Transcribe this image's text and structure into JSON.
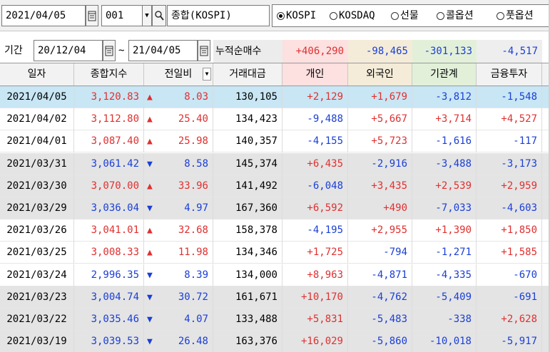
{
  "toolbar": {
    "date": "2021/04/05",
    "code": "001",
    "name": "종합(KOSPI)",
    "market_options": [
      {
        "label": "KOSPI",
        "selected": true
      },
      {
        "label": "KOSDAQ",
        "selected": false
      },
      {
        "label": "선물",
        "selected": false
      },
      {
        "label": "콜옵션",
        "selected": false
      },
      {
        "label": "풋옵션",
        "selected": false
      }
    ]
  },
  "period": {
    "label": "기간",
    "from": "20/12/04",
    "sep": "~",
    "to": "21/04/05",
    "cumulative_label": "누적순매수",
    "totals": [
      "+406,290",
      "-98,465",
      "-301,133",
      "-4,517"
    ]
  },
  "columns": [
    "일자",
    "종합지수",
    "전일비",
    "거래대금",
    "개인",
    "외국인",
    "기관계",
    "금융투자"
  ],
  "colors": {
    "up": "#e03030",
    "down": "#1a3fd6",
    "selected_row": "#c8e6f4",
    "gray_row": "#e4e4e4",
    "hdr_individual": "#fde0e0",
    "hdr_foreign": "#f4ecd8",
    "hdr_inst": "#e2f0d9",
    "hdr_fin": "#eeeeee"
  },
  "rows": [
    {
      "date": "2021/04/05",
      "index": "3,120.83",
      "dir": "up",
      "change": "8.03",
      "amount": "130,105",
      "individual": "+2,129",
      "foreign": "+1,679",
      "institution": "-3,812",
      "financial": "-1,548",
      "bg": "selected"
    },
    {
      "date": "2021/04/02",
      "index": "3,112.80",
      "dir": "up",
      "change": "25.40",
      "amount": "134,423",
      "individual": "-9,488",
      "foreign": "+5,667",
      "institution": "+3,714",
      "financial": "+4,527",
      "bg": "white"
    },
    {
      "date": "2021/04/01",
      "index": "3,087.40",
      "dir": "up",
      "change": "25.98",
      "amount": "140,357",
      "individual": "-4,155",
      "foreign": "+5,723",
      "institution": "-1,616",
      "financial": "-117",
      "bg": "white"
    },
    {
      "date": "2021/03/31",
      "index": "3,061.42",
      "dir": "down",
      "change": "8.58",
      "amount": "145,374",
      "individual": "+6,435",
      "foreign": "-2,916",
      "institution": "-3,488",
      "financial": "-3,173",
      "bg": "gray"
    },
    {
      "date": "2021/03/30",
      "index": "3,070.00",
      "dir": "up",
      "change": "33.96",
      "amount": "141,492",
      "individual": "-6,048",
      "foreign": "+3,435",
      "institution": "+2,539",
      "financial": "+2,959",
      "bg": "gray"
    },
    {
      "date": "2021/03/29",
      "index": "3,036.04",
      "dir": "down",
      "change": "4.97",
      "amount": "167,360",
      "individual": "+6,592",
      "foreign": "+490",
      "institution": "-7,033",
      "financial": "-4,603",
      "bg": "gray"
    },
    {
      "date": "2021/03/26",
      "index": "3,041.01",
      "dir": "up",
      "change": "32.68",
      "amount": "158,378",
      "individual": "-4,195",
      "foreign": "+2,955",
      "institution": "+1,390",
      "financial": "+1,850",
      "bg": "white"
    },
    {
      "date": "2021/03/25",
      "index": "3,008.33",
      "dir": "up",
      "change": "11.98",
      "amount": "134,346",
      "individual": "+1,725",
      "foreign": "-794",
      "institution": "-1,271",
      "financial": "+1,585",
      "bg": "white"
    },
    {
      "date": "2021/03/24",
      "index": "2,996.35",
      "dir": "down",
      "change": "8.39",
      "amount": "134,000",
      "individual": "+8,963",
      "foreign": "-4,871",
      "institution": "-4,335",
      "financial": "-670",
      "bg": "white"
    },
    {
      "date": "2021/03/23",
      "index": "3,004.74",
      "dir": "down",
      "change": "30.72",
      "amount": "161,671",
      "individual": "+10,170",
      "foreign": "-4,762",
      "institution": "-5,409",
      "financial": "-691",
      "bg": "gray"
    },
    {
      "date": "2021/03/22",
      "index": "3,035.46",
      "dir": "down",
      "change": "4.07",
      "amount": "133,488",
      "individual": "+5,831",
      "foreign": "-5,483",
      "institution": "-338",
      "financial": "+2,628",
      "bg": "gray"
    },
    {
      "date": "2021/03/19",
      "index": "3,039.53",
      "dir": "down",
      "change": "26.48",
      "amount": "163,376",
      "individual": "+16,029",
      "foreign": "-5,860",
      "institution": "-10,018",
      "financial": "-5,917",
      "bg": "gray"
    }
  ]
}
